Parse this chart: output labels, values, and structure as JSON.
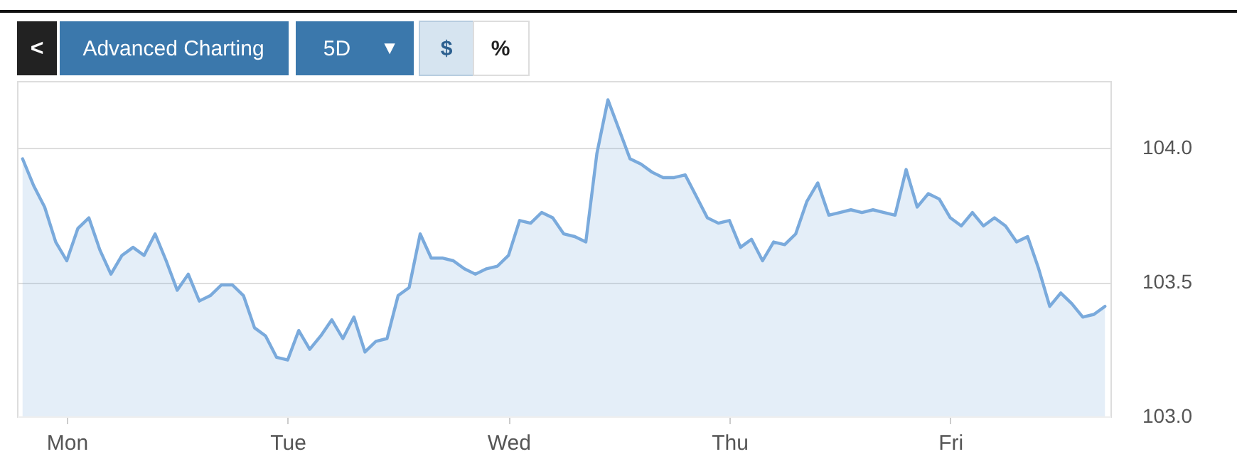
{
  "chart_data": {
    "type": "area",
    "annotations": [
      "<",
      "Advanced Charting",
      "5D",
      "▼",
      "$",
      "%"
    ],
    "ylim": [
      103.0,
      104.25
    ],
    "yticks": [
      {
        "value": 103,
        "label": "103.0"
      },
      {
        "value": 103.5,
        "label": "103.5"
      },
      {
        "value": 104,
        "label": "104.0"
      }
    ],
    "grid": "y",
    "legend": false,
    "line_style": "solid",
    "marker": "none",
    "categories": [
      null,
      null,
      null,
      null,
      "Mon",
      null,
      null,
      null,
      null,
      null,
      null,
      null,
      null,
      null,
      null,
      null,
      null,
      null,
      null,
      null,
      null,
      null,
      null,
      null,
      "Tue",
      null,
      null,
      null,
      null,
      null,
      null,
      null,
      null,
      null,
      null,
      null,
      null,
      null,
      null,
      null,
      null,
      null,
      null,
      null,
      "Wed",
      null,
      null,
      null,
      null,
      null,
      null,
      null,
      null,
      null,
      null,
      null,
      null,
      null,
      null,
      null,
      null,
      null,
      null,
      null,
      "Thu",
      null,
      null,
      null,
      null,
      null,
      null,
      null,
      null,
      null,
      null,
      null,
      null,
      null,
      null,
      null,
      null,
      null,
      null,
      null,
      "Fri",
      null,
      null,
      null,
      null,
      null,
      null,
      null,
      null,
      null,
      null,
      null,
      null,
      null,
      null
    ],
    "series": [
      {
        "color": "#7aaadc",
        "values": [
          103.96,
          103.86,
          103.78,
          103.65,
          103.58,
          103.7,
          103.74,
          103.62,
          103.53,
          103.6,
          103.63,
          103.6,
          103.68,
          103.58,
          103.47,
          103.53,
          103.43,
          103.45,
          103.49,
          103.49,
          103.45,
          103.33,
          103.3,
          103.22,
          103.21,
          103.32,
          103.25,
          103.3,
          103.36,
          103.29,
          103.37,
          103.24,
          103.28,
          103.29,
          103.45,
          103.48,
          103.68,
          103.59,
          103.59,
          103.58,
          103.55,
          103.53,
          103.55,
          103.56,
          103.6,
          103.73,
          103.72,
          103.76,
          103.74,
          103.68,
          103.67,
          103.65,
          103.98,
          104.18,
          104.07,
          103.96,
          103.94,
          103.91,
          103.89,
          103.89,
          103.9,
          103.82,
          103.74,
          103.72,
          103.73,
          103.63,
          103.66,
          103.58,
          103.65,
          103.64,
          103.68,
          103.8,
          103.87,
          103.75,
          103.76,
          103.77,
          103.76,
          103.77,
          103.76,
          103.75,
          103.92,
          103.78,
          103.83,
          103.81,
          103.74,
          103.71,
          103.76,
          103.71,
          103.74,
          103.71,
          103.65,
          103.67,
          103.55,
          103.41,
          103.46,
          103.42,
          103.37,
          103.38,
          103.41
        ]
      }
    ]
  }
}
